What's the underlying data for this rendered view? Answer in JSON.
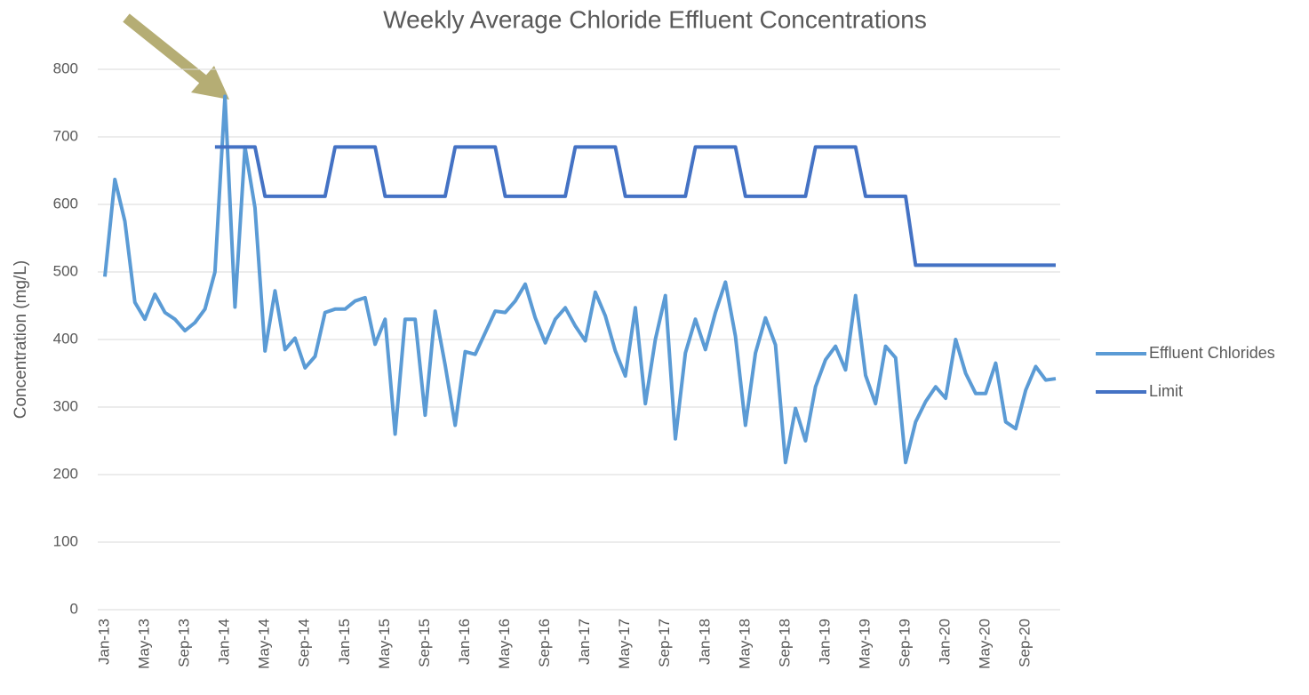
{
  "chart_data": {
    "type": "line",
    "title": "Weekly Average Chloride Effluent Concentrations",
    "y_label": "Concentration (mg/L)",
    "categories": [
      "Jan-13",
      null,
      null,
      null,
      "May-13",
      null,
      null,
      null,
      "Sep-13",
      null,
      null,
      null,
      "Jan-14",
      null,
      null,
      null,
      "May-14",
      null,
      null,
      null,
      "Sep-14",
      null,
      null,
      null,
      "Jan-15",
      null,
      null,
      null,
      "May-15",
      null,
      null,
      null,
      "Sep-15",
      null,
      null,
      null,
      "Jan-16",
      null,
      null,
      null,
      "May-16",
      null,
      null,
      null,
      "Sep-16",
      null,
      null,
      null,
      "Jan-17",
      null,
      null,
      null,
      "May-17",
      null,
      null,
      null,
      "Sep-17",
      null,
      null,
      null,
      "Jan-18",
      null,
      null,
      null,
      "May-18",
      null,
      null,
      null,
      "Sep-18",
      null,
      null,
      null,
      "Jan-19",
      null,
      null,
      null,
      "May-19",
      null,
      null,
      null,
      "Sep-19",
      null,
      null,
      null,
      "Jan-20",
      null,
      null,
      null,
      "May-20",
      null,
      null,
      null,
      "Sep-20",
      null,
      null,
      null
    ],
    "series": [
      {
        "name": "Effluent Chlorides",
        "color": "#5b9bd5",
        "values": [
          493,
          637,
          575,
          455,
          430,
          467,
          440,
          430,
          413,
          425,
          445,
          500,
          760,
          448,
          685,
          595,
          383,
          472,
          385,
          402,
          358,
          375,
          440,
          445,
          445,
          457,
          462,
          393,
          430,
          260,
          430,
          430,
          288,
          442,
          362,
          273,
          382,
          378,
          410,
          442,
          440,
          457,
          482,
          432,
          395,
          430,
          447,
          420,
          398,
          470,
          435,
          383,
          346,
          447,
          305,
          400,
          465,
          253,
          380,
          430,
          385,
          440,
          485,
          405,
          273,
          380,
          432,
          392,
          218,
          298,
          250,
          330,
          370,
          390,
          355,
          465,
          347,
          305,
          390,
          373,
          218,
          278,
          308,
          330,
          313,
          400,
          350,
          320,
          320,
          365,
          278,
          268,
          325,
          360,
          340,
          342
        ]
      },
      {
        "name": "Limit",
        "color": "#4472c4",
        "values": [
          null,
          null,
          null,
          null,
          null,
          null,
          null,
          null,
          null,
          null,
          null,
          685,
          685,
          685,
          685,
          685,
          612,
          612,
          612,
          612,
          612,
          612,
          612,
          685,
          685,
          685,
          685,
          685,
          612,
          612,
          612,
          612,
          612,
          612,
          612,
          685,
          685,
          685,
          685,
          685,
          612,
          612,
          612,
          612,
          612,
          612,
          612,
          685,
          685,
          685,
          685,
          685,
          612,
          612,
          612,
          612,
          612,
          612,
          612,
          685,
          685,
          685,
          685,
          685,
          612,
          612,
          612,
          612,
          612,
          612,
          612,
          685,
          685,
          685,
          685,
          685,
          612,
          612,
          612,
          612,
          612,
          510,
          510,
          510,
          510,
          510,
          510,
          510,
          510,
          510,
          510,
          510,
          510,
          510,
          510,
          510
        ]
      }
    ],
    "ylim": [
      0,
      800
    ],
    "yticks": [
      0,
      100,
      200,
      300,
      400,
      500,
      600,
      700,
      800
    ],
    "grid": true,
    "legend": "right"
  }
}
